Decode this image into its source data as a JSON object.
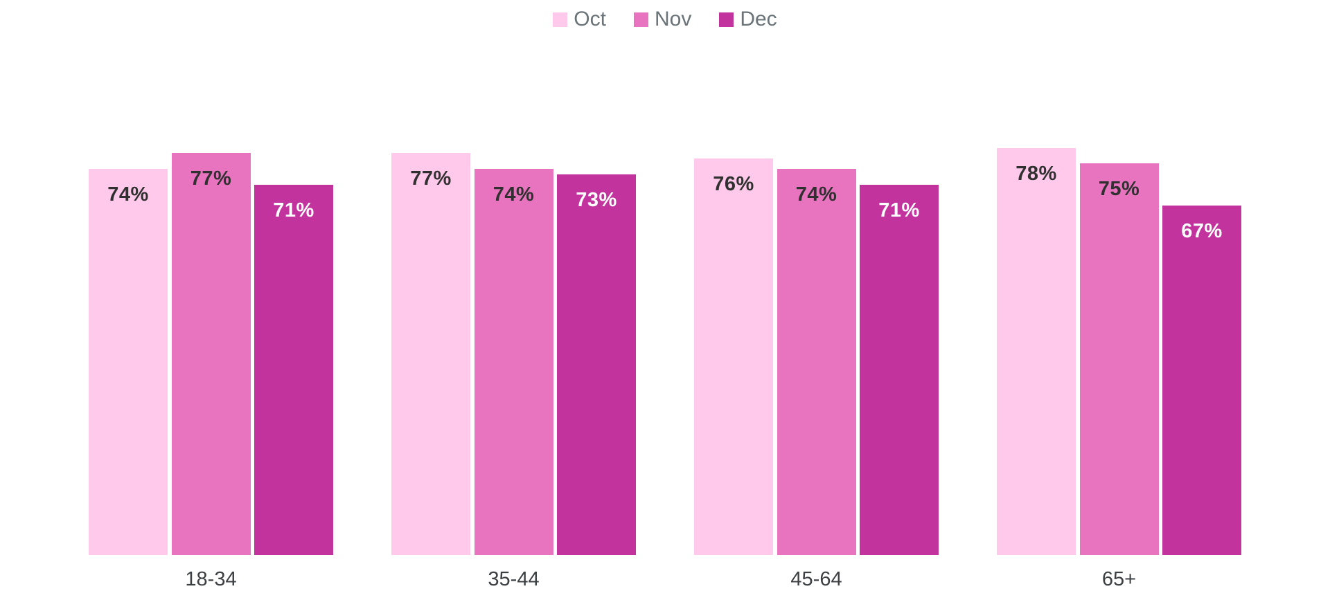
{
  "chart_data": {
    "type": "bar",
    "title": "",
    "categories": [
      "18-34",
      "35-44",
      "45-64",
      "65+"
    ],
    "series": [
      {
        "name": "Oct",
        "color": "#FFC9EB",
        "label_color": "#303030",
        "values": [
          74,
          77,
          76,
          78
        ]
      },
      {
        "name": "Nov",
        "color": "#E873BF",
        "label_color": "#303030",
        "values": [
          77,
          74,
          74,
          75
        ]
      },
      {
        "name": "Dec",
        "color": "#C2339E",
        "label_color": "#FFFFFF",
        "values": [
          71,
          73,
          71,
          67
        ]
      }
    ],
    "value_suffix": "%",
    "ylim": [
      0,
      100
    ],
    "legend_position": "top-center",
    "grid": false,
    "background_color": "#FFFFFF",
    "legend_text_color": "#6A7378",
    "category_label_color": "#3C4043"
  }
}
